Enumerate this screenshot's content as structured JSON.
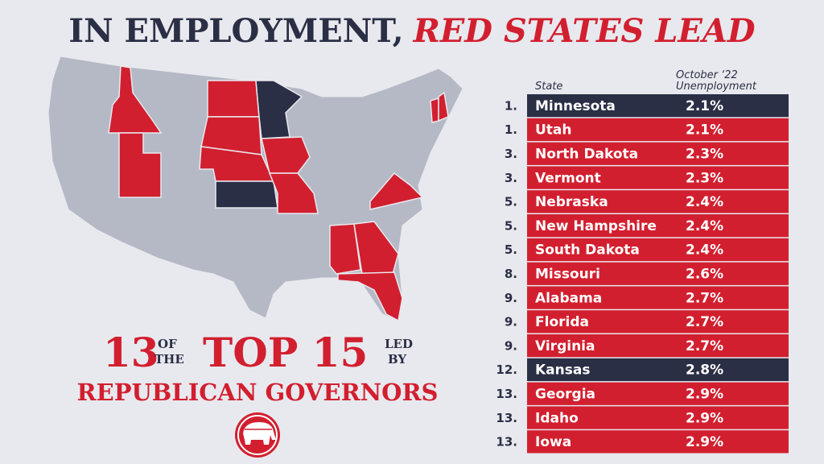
{
  "header": {
    "title_part1": "IN EMPLOYMENT,",
    "title_part2": "RED STATES LEAD"
  },
  "banner": {
    "count": "13",
    "of_the": [
      "OF",
      "THE"
    ],
    "top": "TOP 15",
    "led_by": [
      "LED",
      "BY"
    ],
    "subtitle": "REPUBLICAN GOVERNORS"
  },
  "table": {
    "columns": [
      "State",
      [
        "October ‘22",
        "Unemployment"
      ]
    ],
    "rows": [
      {
        "rank": "1.",
        "state": "Minnesota",
        "value": "2.1%",
        "color": "#2b2f45"
      },
      {
        "rank": "1.",
        "state": "Utah",
        "value": "2.1%",
        "color": "#d21f2f"
      },
      {
        "rank": "3.",
        "state": "North Dakota",
        "value": "2.3%",
        "color": "#d21f2f"
      },
      {
        "rank": "3.",
        "state": "Vermont",
        "value": "2.3%",
        "color": "#d21f2f"
      },
      {
        "rank": "5.",
        "state": "Nebraska",
        "value": "2.4%",
        "color": "#d21f2f"
      },
      {
        "rank": "5.",
        "state": "New Hampshire",
        "value": "2.4%",
        "color": "#d21f2f"
      },
      {
        "rank": "5.",
        "state": "South Dakota",
        "value": "2.4%",
        "color": "#d21f2f"
      },
      {
        "rank": "8.",
        "state": "Missouri",
        "value": "2.6%",
        "color": "#d21f2f"
      },
      {
        "rank": "9.",
        "state": "Alabama",
        "value": "2.7%",
        "color": "#d21f2f"
      },
      {
        "rank": "9.",
        "state": "Florida",
        "value": "2.7%",
        "color": "#d21f2f"
      },
      {
        "rank": "9.",
        "state": "Virginia",
        "value": "2.7%",
        "color": "#d21f2f"
      },
      {
        "rank": "12.",
        "state": "Kansas",
        "value": "2.8%",
        "color": "#2b2f45"
      },
      {
        "rank": "13.",
        "state": "Georgia",
        "value": "2.9%",
        "color": "#d21f2f"
      },
      {
        "rank": "13.",
        "state": "Idaho",
        "value": "2.9%",
        "color": "#d21f2f"
      },
      {
        "rank": "13.",
        "state": "Iowa",
        "value": "2.9%",
        "color": "#d21f2f"
      }
    ]
  }
}
